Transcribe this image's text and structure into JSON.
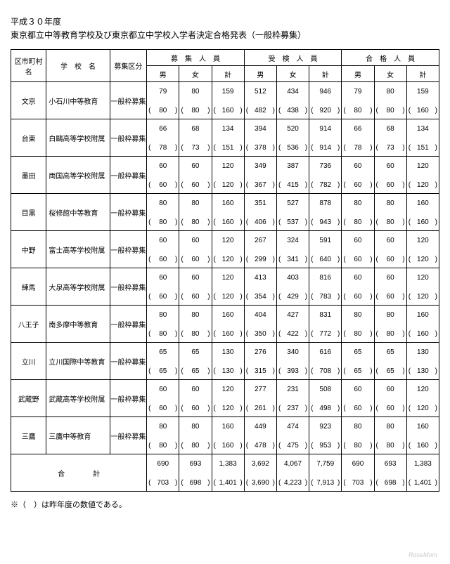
{
  "title1": "平成３０年度",
  "title2": "東京都立中等教育学校及び東京都立中学校入学者決定合格発表（一般枠募集）",
  "headers": {
    "ward": "区市町村名",
    "school": "学　校　名",
    "category": "募集区分",
    "recruit": "募　集　人　員",
    "exam": "受　検　人　員",
    "pass": "合　格　人　員",
    "m": "男",
    "f": "女",
    "t": "計"
  },
  "category_label": "一般枠募集",
  "rows": [
    {
      "ward": "文京",
      "school": "小石川中等教育",
      "r": {
        "m": [
          79,
          80
        ],
        "f": [
          80,
          80
        ],
        "t": [
          159,
          160
        ]
      },
      "e": {
        "m": [
          512,
          482
        ],
        "f": [
          434,
          438
        ],
        "t": [
          946,
          920
        ]
      },
      "p": {
        "m": [
          79,
          80
        ],
        "f": [
          80,
          80
        ],
        "t": [
          159,
          160
        ]
      }
    },
    {
      "ward": "台東",
      "school": "白鷗高等学校附属",
      "r": {
        "m": [
          66,
          78
        ],
        "f": [
          68,
          73
        ],
        "t": [
          134,
          151
        ]
      },
      "e": {
        "m": [
          394,
          378
        ],
        "f": [
          520,
          536
        ],
        "t": [
          914,
          914
        ]
      },
      "p": {
        "m": [
          66,
          78
        ],
        "f": [
          68,
          73
        ],
        "t": [
          134,
          151
        ]
      }
    },
    {
      "ward": "墨田",
      "school": "両国高等学校附属",
      "r": {
        "m": [
          60,
          60
        ],
        "f": [
          60,
          60
        ],
        "t": [
          120,
          120
        ]
      },
      "e": {
        "m": [
          349,
          367
        ],
        "f": [
          387,
          415
        ],
        "t": [
          736,
          782
        ]
      },
      "p": {
        "m": [
          60,
          60
        ],
        "f": [
          60,
          60
        ],
        "t": [
          120,
          120
        ]
      }
    },
    {
      "ward": "目黒",
      "school": "桜修館中等教育",
      "r": {
        "m": [
          80,
          80
        ],
        "f": [
          80,
          80
        ],
        "t": [
          160,
          160
        ]
      },
      "e": {
        "m": [
          351,
          406
        ],
        "f": [
          527,
          537
        ],
        "t": [
          878,
          943
        ]
      },
      "p": {
        "m": [
          80,
          80
        ],
        "f": [
          80,
          80
        ],
        "t": [
          160,
          160
        ]
      }
    },
    {
      "ward": "中野",
      "school": "富士高等学校附属",
      "r": {
        "m": [
          60,
          60
        ],
        "f": [
          60,
          60
        ],
        "t": [
          120,
          120
        ]
      },
      "e": {
        "m": [
          267,
          299
        ],
        "f": [
          324,
          341
        ],
        "t": [
          591,
          640
        ]
      },
      "p": {
        "m": [
          60,
          60
        ],
        "f": [
          60,
          60
        ],
        "t": [
          120,
          120
        ]
      }
    },
    {
      "ward": "練馬",
      "school": "大泉高等学校附属",
      "r": {
        "m": [
          60,
          60
        ],
        "f": [
          60,
          60
        ],
        "t": [
          120,
          120
        ]
      },
      "e": {
        "m": [
          413,
          354
        ],
        "f": [
          403,
          429
        ],
        "t": [
          816,
          783
        ]
      },
      "p": {
        "m": [
          60,
          60
        ],
        "f": [
          60,
          60
        ],
        "t": [
          120,
          120
        ]
      }
    },
    {
      "ward": "八王子",
      "school": "南多摩中等教育",
      "r": {
        "m": [
          80,
          80
        ],
        "f": [
          80,
          80
        ],
        "t": [
          160,
          160
        ]
      },
      "e": {
        "m": [
          404,
          350
        ],
        "f": [
          427,
          422
        ],
        "t": [
          831,
          772
        ]
      },
      "p": {
        "m": [
          80,
          80
        ],
        "f": [
          80,
          80
        ],
        "t": [
          160,
          160
        ]
      }
    },
    {
      "ward": "立川",
      "school": "立川国際中等教育",
      "r": {
        "m": [
          65,
          65
        ],
        "f": [
          65,
          65
        ],
        "t": [
          130,
          130
        ]
      },
      "e": {
        "m": [
          276,
          315
        ],
        "f": [
          340,
          393
        ],
        "t": [
          616,
          708
        ]
      },
      "p": {
        "m": [
          65,
          65
        ],
        "f": [
          65,
          65
        ],
        "t": [
          130,
          130
        ]
      }
    },
    {
      "ward": "武蔵野",
      "school": "武蔵高等学校附属",
      "r": {
        "m": [
          60,
          60
        ],
        "f": [
          60,
          60
        ],
        "t": [
          120,
          120
        ]
      },
      "e": {
        "m": [
          277,
          261
        ],
        "f": [
          231,
          237
        ],
        "t": [
          508,
          498
        ]
      },
      "p": {
        "m": [
          60,
          60
        ],
        "f": [
          60,
          60
        ],
        "t": [
          120,
          120
        ]
      }
    },
    {
      "ward": "三鷹",
      "school": "三鷹中等教育",
      "r": {
        "m": [
          80,
          80
        ],
        "f": [
          80,
          80
        ],
        "t": [
          160,
          160
        ]
      },
      "e": {
        "m": [
          449,
          478
        ],
        "f": [
          474,
          475
        ],
        "t": [
          923,
          953
        ]
      },
      "p": {
        "m": [
          80,
          80
        ],
        "f": [
          80,
          80
        ],
        "t": [
          160,
          160
        ]
      }
    }
  ],
  "total": {
    "label": "合　　　　計",
    "r": {
      "m": [
        690,
        703
      ],
      "f": [
        693,
        698
      ],
      "t": [
        1383,
        1401
      ]
    },
    "e": {
      "m": [
        3692,
        3690
      ],
      "f": [
        4067,
        4223
      ],
      "t": [
        7759,
        7913
      ]
    },
    "p": {
      "m": [
        690,
        703
      ],
      "f": [
        693,
        698
      ],
      "t": [
        1383,
        1401
      ]
    }
  },
  "footnote": "※（　）は昨年度の数値である。",
  "watermark": "ReseMom"
}
